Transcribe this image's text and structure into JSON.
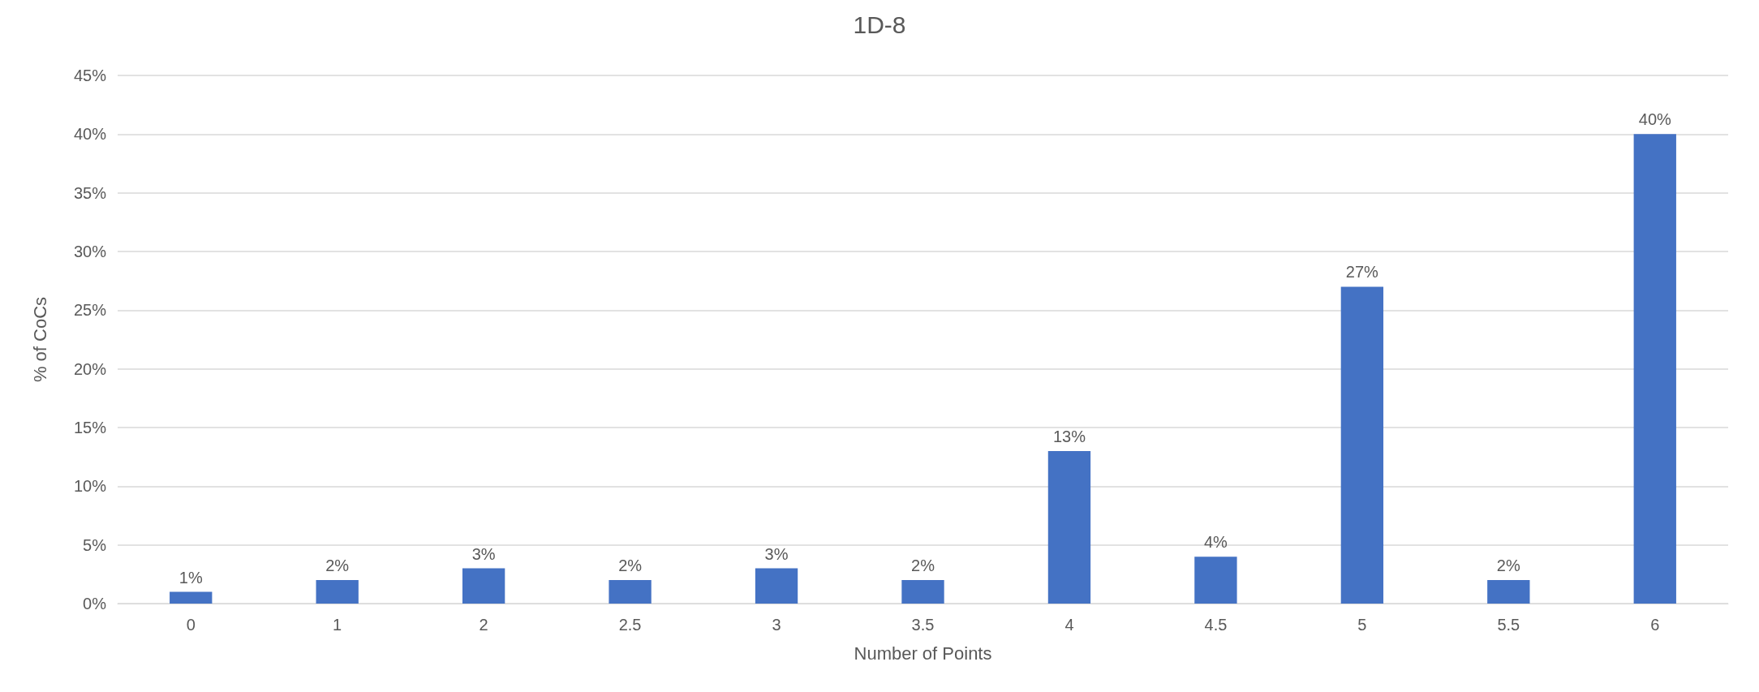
{
  "chart_data": {
    "type": "bar",
    "title": "1D-8",
    "xlabel": "Number of Points",
    "ylabel": "% of CoCs",
    "categories": [
      "0",
      "1",
      "2",
      "2.5",
      "3",
      "3.5",
      "4",
      "4.5",
      "5",
      "5.5",
      "6"
    ],
    "values": [
      1,
      2,
      3,
      2,
      3,
      2,
      13,
      4,
      27,
      2,
      40
    ],
    "value_labels": [
      "1%",
      "2%",
      "3%",
      "2%",
      "3%",
      "2%",
      "13%",
      "4%",
      "27%",
      "2%",
      "40%"
    ],
    "color": "#4472c4",
    "ylim": [
      0,
      45
    ],
    "yticks": [
      {
        "value": 0,
        "label": "0%"
      },
      {
        "value": 5,
        "label": "5%"
      },
      {
        "value": 10,
        "label": "10%"
      },
      {
        "value": 15,
        "label": "15%"
      },
      {
        "value": 20,
        "label": "20%"
      },
      {
        "value": 25,
        "label": "25%"
      },
      {
        "value": 30,
        "label": "30%"
      },
      {
        "value": 35,
        "label": "35%"
      },
      {
        "value": 40,
        "label": "40%"
      },
      {
        "value": 45,
        "label": "45%"
      }
    ],
    "grid": "y"
  }
}
